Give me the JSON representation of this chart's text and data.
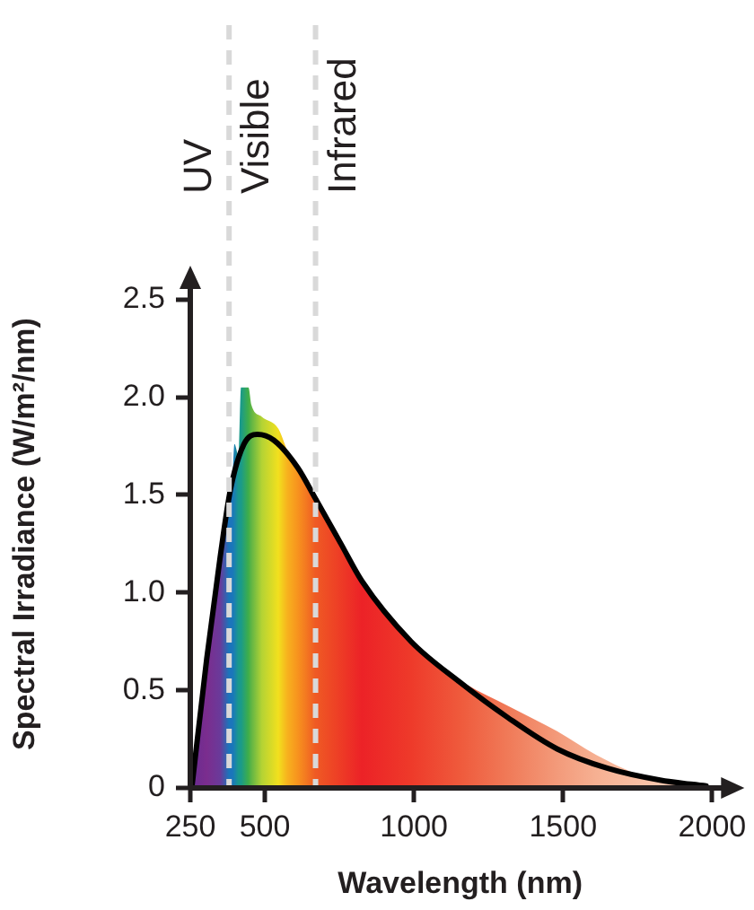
{
  "chart_data": {
    "type": "area",
    "xlabel": "Wavelength (nm)",
    "ylabel": "Spectral Irradiance (W/m²/nm)",
    "xlim": [
      250,
      2060
    ],
    "xticks": [
      250,
      500,
      1000,
      1500,
      2000
    ],
    "ylim": [
      0,
      2.6
    ],
    "yticks": [
      0,
      {
        "value": 0.5,
        "label": "0.5"
      },
      {
        "value": 1,
        "label": "1.0"
      },
      {
        "value": 1.5,
        "label": "1.5"
      },
      {
        "value": 2,
        "label": "2.0"
      },
      {
        "value": 2.5,
        "label": "2.5"
      }
    ],
    "legend": false,
    "marker": "none",
    "series": [
      {
        "type": "area",
        "color": "#ec2227",
        "x": [
          260,
          305,
          350,
          380,
          390,
          398,
          412,
          420,
          445,
          455,
          490,
          545,
          575,
          610,
          670,
          825,
          990,
          1155,
          1315,
          1480,
          1610,
          1785,
          1960
        ],
        "values": [
          0,
          0.6,
          1.15,
          1.5,
          1.55,
          1.76,
          1.7,
          2.05,
          2.05,
          1.96,
          1.9,
          1.84,
          1.73,
          1.64,
          1.48,
          1.07,
          0.75,
          0.55,
          0.42,
          0.29,
          0.17,
          0.05,
          0
        ],
        "colors": [
          "#6a2c91",
          "#7b2d8e",
          "#6a3a9a",
          "#1b75bb",
          "#1b75bb",
          "#1a80b0",
          "#1a9a8a",
          "#1a9a8a",
          "#3fae49",
          "#60b545",
          "#b4d334",
          "#f2e01e",
          "#f7b21e",
          "#f7931e",
          "#ef5a24",
          "#ec2227",
          "#ee3a2a",
          "#ef5a3c",
          "#f07a58",
          "#f39a7a",
          "#f6b092",
          "#f9c2a8",
          "#fcd4c0"
        ]
      },
      {
        "type": "line",
        "color": "#000000",
        "line_style": "solid",
        "x": [
          255,
          305,
          350,
          385,
          430,
          475,
          530,
          610,
          670,
          755,
          825,
          990,
          1155,
          1315,
          1480,
          1650,
          1825,
          1980
        ],
        "values": [
          0,
          0.66,
          1.18,
          1.53,
          1.76,
          1.81,
          1.78,
          1.64,
          1.48,
          1.25,
          1.06,
          0.75,
          0.54,
          0.36,
          0.2,
          0.1,
          0.04,
          0.01
        ]
      }
    ],
    "ref_lines": [
      {
        "axis": "x",
        "value": 380,
        "color": "#d9d9d9",
        "line_style": "dashed"
      },
      {
        "axis": "x",
        "value": 670,
        "color": "#d9d9d9",
        "line_style": "dashed"
      }
    ],
    "annotations": [
      "UV",
      "Visible",
      "Infrared"
    ]
  }
}
